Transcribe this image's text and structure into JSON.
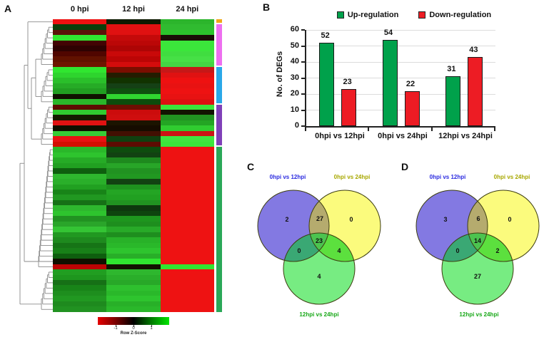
{
  "panel_letters": {
    "a": "A",
    "b": "B",
    "c": "C",
    "d": "D"
  },
  "chart_data": [
    {
      "id": "heatmap-degs",
      "type": "heatmap",
      "columns": [
        "0 hpi",
        "12 hpi",
        "24 hpi"
      ],
      "colorbar": {
        "label": "Row Z-Score",
        "ticks": [
          "-1",
          "0",
          "1"
        ],
        "low_color": "#e60000",
        "mid_color": "#000000",
        "high_color": "#00e600"
      },
      "row_clusters": [
        {
          "color": "#f0a818",
          "row_count": 1
        },
        {
          "color": "#ee6ff0",
          "row_count": 8
        },
        {
          "color": "#2aa8e8",
          "row_count": 7
        },
        {
          "color": "#8040b8",
          "row_count": 8
        },
        {
          "color": "#2aa858",
          "row_count": 31
        }
      ],
      "cells": [
        [
          "#ee1111",
          "#0d1a00",
          "#2cb52c"
        ],
        [
          "#0a3f0a",
          "#e01111",
          "#30bb30"
        ],
        [
          "#5a1208",
          "#e01111",
          "#2cc42c"
        ],
        [
          "#30e630",
          "#c40a0a",
          "#1a0f06"
        ],
        [
          "#420404",
          "#bb0707",
          "#3be63b"
        ],
        [
          "#2e0202",
          "#ad0505",
          "#3be63b"
        ],
        [
          "#500600",
          "#c90909",
          "#40dd40"
        ],
        [
          "#611200",
          "#bb0505",
          "#46e046"
        ],
        [
          "#6e1600",
          "#d40c0c",
          "#44d544"
        ],
        [
          "#30e630",
          "#7a0e00",
          "#c61818"
        ],
        [
          "#2ed42e",
          "#241c00",
          "#e01212"
        ],
        [
          "#2abf2a",
          "#113300",
          "#ee1111"
        ],
        [
          "#26ab26",
          "#154015",
          "#e81212"
        ],
        [
          "#219e21",
          "#0e4f0e",
          "#ee1212"
        ],
        [
          "#101000",
          "#30d430",
          "#e81212"
        ],
        [
          "#2ab82a",
          "#0c4c0c",
          "#dd1111"
        ],
        [
          "#5e0c02",
          "#6e0e02",
          "#3be63b"
        ],
        [
          "#30cc30",
          "#cc0c0c",
          "#121200"
        ],
        [
          "#141c00",
          "#cf0e0e",
          "#219221"
        ],
        [
          "#e01212",
          "#1c1400",
          "#24a524"
        ],
        [
          "#101000",
          "#160c00",
          "#30cc30"
        ],
        [
          "#36cc36",
          "#420f02",
          "#cc1414"
        ],
        [
          "#e81212",
          "#104010",
          "#40e640"
        ],
        [
          "#d40f02",
          "#5e0c02",
          "#3be63b"
        ],
        [
          "#2ab82a",
          "#0e4c0e",
          "#ee1212"
        ],
        [
          "#2ec42e",
          "#124212",
          "#ee1212"
        ],
        [
          "#26ab26",
          "#1e8a1e",
          "#ee1212"
        ],
        [
          "#21a021",
          "#28a528",
          "#ee1212"
        ],
        [
          "#0e5e0e",
          "#219221",
          "#ee1212"
        ],
        [
          "#2eb72e",
          "#219821",
          "#ee1212"
        ],
        [
          "#2aaf2a",
          "#124212",
          "#ee1212"
        ],
        [
          "#21a021",
          "#1e921e",
          "#ee1212"
        ],
        [
          "#188418",
          "#24a524",
          "#ee1212"
        ],
        [
          "#219821",
          "#21a021",
          "#ee1212"
        ],
        [
          "#167016",
          "#219221",
          "#ee1212"
        ],
        [
          "#2eb72e",
          "#0e360e",
          "#ee1212"
        ],
        [
          "#2ec42e",
          "#0e440e",
          "#ee1212"
        ],
        [
          "#219221",
          "#1e961e",
          "#ee1212"
        ],
        [
          "#2aa52a",
          "#1e8e1e",
          "#ee1212"
        ],
        [
          "#34c434",
          "#28aa28",
          "#ee1212"
        ],
        [
          "#219821",
          "#1e8e1e",
          "#ee1212"
        ],
        [
          "#1e8a1e",
          "#28b228",
          "#ee1212"
        ],
        [
          "#167416",
          "#2ab82a",
          "#ee1212"
        ],
        [
          "#188018",
          "#2ec42e",
          "#ee1212"
        ],
        [
          "#0e5e0e",
          "#28ae28",
          "#ee1212"
        ],
        [
          "#101000",
          "#30e630",
          "#ee1212"
        ],
        [
          "#bb0404",
          "#121200",
          "#30e630"
        ],
        [
          "#219e21",
          "#2eb72e",
          "#ee1212"
        ],
        [
          "#1e961e",
          "#2aae2a",
          "#ee1212"
        ],
        [
          "#167016",
          "#28a828",
          "#ee1212"
        ],
        [
          "#188418",
          "#2ec02e",
          "#ee1212"
        ],
        [
          "#1e8e1e",
          "#2ab82a",
          "#ee1212"
        ],
        [
          "#219821",
          "#2ec42e",
          "#ee1212"
        ],
        [
          "#1e8a1e",
          "#28b028",
          "#ee1212"
        ],
        [
          "#219221",
          "#2ab82a",
          "#ee1212"
        ]
      ]
    },
    {
      "id": "deg-bar-chart",
      "type": "bar",
      "categories": [
        "0hpi vs 12hpi",
        "0hpi vs 24hpi",
        "12hpi vs 24hpi"
      ],
      "series": [
        {
          "name": "Up-regulation",
          "color": "#00a14b",
          "values": [
            52,
            54,
            31
          ]
        },
        {
          "name": "Down-regulation",
          "color": "#ed1c24",
          "values": [
            23,
            22,
            43
          ]
        }
      ],
      "ylabel": "No. of DEGs",
      "ylim": [
        0,
        60
      ],
      "yticks": [
        0,
        10,
        20,
        30,
        40,
        50,
        60
      ],
      "grid": true,
      "legend_position": "top"
    },
    {
      "id": "venn-c",
      "type": "venn3",
      "sets": [
        {
          "label": "0hpi vs 12hpi",
          "label_color": "#2a2ae0",
          "fill": "#8379e2"
        },
        {
          "label": "0hpi vs 24hpi",
          "label_color": "#a8a800",
          "fill": "#fbfb7d"
        },
        {
          "label": "12hpi vs 24hpi",
          "label_color": "#18a818",
          "fill": "#77ec82"
        }
      ],
      "regions": {
        "a_only": "2",
        "ab": "27",
        "b_only": "0",
        "abc": "23",
        "ac": "0",
        "bc": "4",
        "c_only": "4"
      }
    },
    {
      "id": "venn-d",
      "type": "venn3",
      "sets": [
        {
          "label": "0hpi vs 12hpi",
          "label_color": "#2a2ae0",
          "fill": "#8379e2"
        },
        {
          "label": "0hpi vs 24hpi",
          "label_color": "#a8a800",
          "fill": "#fbfb7d"
        },
        {
          "label": "12hpi vs 24hpi",
          "label_color": "#18a818",
          "fill": "#77ec82"
        }
      ],
      "regions": {
        "a_only": "3",
        "ab": "6",
        "b_only": "0",
        "abc": "14",
        "ac": "0",
        "bc": "2",
        "c_only": "27"
      }
    }
  ],
  "venn_overlap_colors": {
    "ab": "#b5ab6e",
    "ac": "#3aa874",
    "bc": "#5ce03e",
    "abc": "#4cc34f"
  }
}
